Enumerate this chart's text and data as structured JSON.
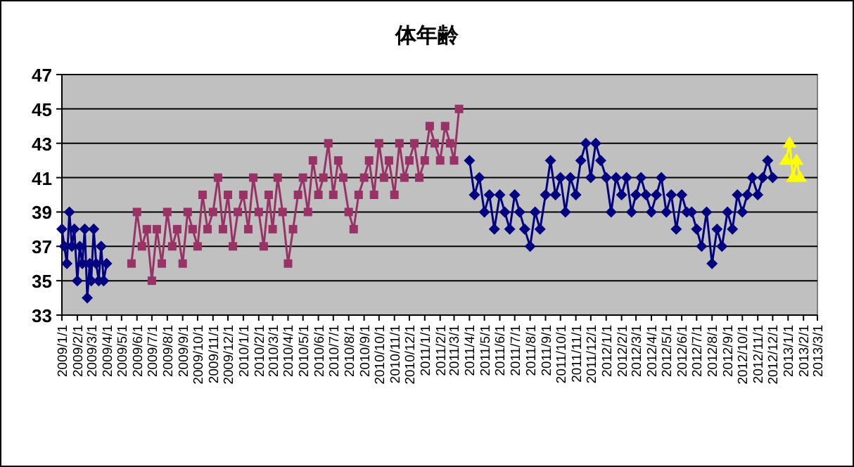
{
  "chart_data": {
    "type": "line",
    "title": "体年齢",
    "grid": "y",
    "line_style": "solid",
    "xlim": [
      "2009-01-01",
      "2013-03-01"
    ],
    "xticks": [
      {
        "value": "2009-01-01",
        "label": "2009/1/1"
      },
      {
        "value": "2009-02-01",
        "label": "2009/2/1"
      },
      {
        "value": "2009-03-01",
        "label": "2009/3/1"
      },
      {
        "value": "2009-04-01",
        "label": "2009/4/1"
      },
      {
        "value": "2009-05-01",
        "label": "2009/5/1"
      },
      {
        "value": "2009-06-01",
        "label": "2009/6/1"
      },
      {
        "value": "2009-07-01",
        "label": "2009/7/1"
      },
      {
        "value": "2009-08-01",
        "label": "2009/8/1"
      },
      {
        "value": "2009-09-01",
        "label": "2009/9/1"
      },
      {
        "value": "2009-10-01",
        "label": "2009/10/1"
      },
      {
        "value": "2009-11-01",
        "label": "2009/11/1"
      },
      {
        "value": "2009-12-01",
        "label": "2009/12/1"
      },
      {
        "value": "2010-01-01",
        "label": "2010/1/1"
      },
      {
        "value": "2010-02-01",
        "label": "2010/2/1"
      },
      {
        "value": "2010-03-01",
        "label": "2010/3/1"
      },
      {
        "value": "2010-04-01",
        "label": "2010/4/1"
      },
      {
        "value": "2010-05-01",
        "label": "2010/5/1"
      },
      {
        "value": "2010-06-01",
        "label": "2010/6/1"
      },
      {
        "value": "2010-07-01",
        "label": "2010/7/1"
      },
      {
        "value": "2010-08-01",
        "label": "2010/8/1"
      },
      {
        "value": "2010-09-01",
        "label": "2010/9/1"
      },
      {
        "value": "2010-10-01",
        "label": "2010/10/1"
      },
      {
        "value": "2010-11-01",
        "label": "2010/11/1"
      },
      {
        "value": "2010-12-01",
        "label": "2010/12/1"
      },
      {
        "value": "2011-01-01",
        "label": "2011/1/1"
      },
      {
        "value": "2011-02-01",
        "label": "2011/2/1"
      },
      {
        "value": "2011-03-01",
        "label": "2011/3/1"
      },
      {
        "value": "2011-04-01",
        "label": "2011/4/1"
      },
      {
        "value": "2011-05-01",
        "label": "2011/5/1"
      },
      {
        "value": "2011-06-01",
        "label": "2011/6/1"
      },
      {
        "value": "2011-07-01",
        "label": "2011/7/1"
      },
      {
        "value": "2011-08-01",
        "label": "2011/8/1"
      },
      {
        "value": "2011-09-01",
        "label": "2011/9/1"
      },
      {
        "value": "2011-10-01",
        "label": "2011/10/1"
      },
      {
        "value": "2011-11-01",
        "label": "2011/11/1"
      },
      {
        "value": "2011-12-01",
        "label": "2011/12/1"
      },
      {
        "value": "2012-01-01",
        "label": "2012/1/1"
      },
      {
        "value": "2012-02-01",
        "label": "2012/2/1"
      },
      {
        "value": "2012-03-01",
        "label": "2012/3/1"
      },
      {
        "value": "2012-04-01",
        "label": "2012/4/1"
      },
      {
        "value": "2012-05-01",
        "label": "2012/5/1"
      },
      {
        "value": "2012-06-01",
        "label": "2012/6/1"
      },
      {
        "value": "2012-07-01",
        "label": "2012/7/1"
      },
      {
        "value": "2012-08-01",
        "label": "2012/8/1"
      },
      {
        "value": "2012-09-01",
        "label": "2012/9/1"
      },
      {
        "value": "2012-10-01",
        "label": "2012/10/1"
      },
      {
        "value": "2012-11-01",
        "label": "2012/11/1"
      },
      {
        "value": "2012-12-01",
        "label": "2012/12/1"
      },
      {
        "value": "2013-01-01",
        "label": "2013/1/1"
      },
      {
        "value": "2013-02-01",
        "label": "2013/2/1"
      },
      {
        "value": "2013-03-01",
        "label": "2013/3/1"
      }
    ],
    "ylim": [
      33,
      47
    ],
    "yticks": [
      33,
      35,
      37,
      39,
      41,
      43,
      45,
      47
    ],
    "series": [
      {
        "color": "#000080",
        "marker": "diamond",
        "x": [
          "2009-01-01",
          "2009-01-06",
          "2009-01-11",
          "2009-01-16",
          "2009-01-21",
          "2009-01-26",
          "2009-02-01",
          "2009-02-06",
          "2009-02-11",
          "2009-02-16",
          "2009-02-21",
          "2009-02-26",
          "2009-03-01",
          "2009-03-06",
          "2009-03-11",
          "2009-03-16",
          "2009-03-21",
          "2009-03-26",
          "2009-04-01"
        ],
        "values": [
          38,
          37,
          36,
          39,
          37,
          38,
          35,
          37,
          36,
          38,
          34,
          36,
          35,
          38,
          36,
          35,
          37,
          35,
          36
        ]
      },
      {
        "color": "#993366",
        "marker": "square",
        "x": [
          "2009-05-21",
          "2009-06-01",
          "2009-06-11",
          "2009-06-21",
          "2009-07-01",
          "2009-07-11",
          "2009-07-21",
          "2009-08-01",
          "2009-08-11",
          "2009-08-21",
          "2009-09-01",
          "2009-09-11",
          "2009-09-21",
          "2009-10-01",
          "2009-10-11",
          "2009-10-21",
          "2009-11-01",
          "2009-11-11",
          "2009-11-21",
          "2009-12-01",
          "2009-12-11",
          "2009-12-21",
          "2010-01-01",
          "2010-01-11",
          "2010-01-21",
          "2010-02-01",
          "2010-02-11",
          "2010-02-21",
          "2010-03-01",
          "2010-03-11",
          "2010-03-21",
          "2010-04-01",
          "2010-04-11",
          "2010-04-21",
          "2010-05-01",
          "2010-05-11",
          "2010-05-21",
          "2010-06-01",
          "2010-06-11",
          "2010-06-21",
          "2010-07-01",
          "2010-07-11",
          "2010-07-21",
          "2010-08-01",
          "2010-08-11",
          "2010-08-21",
          "2010-09-01",
          "2010-09-11",
          "2010-09-21",
          "2010-10-01",
          "2010-10-11",
          "2010-10-21",
          "2010-11-01",
          "2010-11-11",
          "2010-11-21",
          "2010-12-01",
          "2010-12-11",
          "2010-12-21",
          "2011-01-01",
          "2011-01-11",
          "2011-01-21",
          "2011-02-01",
          "2011-02-11",
          "2011-02-21",
          "2011-03-01",
          "2011-03-11"
        ],
        "values": [
          36,
          39,
          37,
          38,
          35,
          38,
          36,
          39,
          37,
          38,
          36,
          39,
          38,
          37,
          40,
          38,
          39,
          41,
          38,
          40,
          37,
          39,
          40,
          38,
          41,
          39,
          37,
          40,
          38,
          41,
          39,
          36,
          38,
          40,
          41,
          39,
          42,
          40,
          41,
          43,
          40,
          42,
          41,
          39,
          38,
          40,
          41,
          42,
          40,
          43,
          41,
          42,
          40,
          43,
          41,
          42,
          43,
          41,
          42,
          44,
          43,
          42,
          44,
          43,
          42,
          45
        ]
      },
      {
        "color": "#000080",
        "marker": "diamond",
        "x": [
          "2011-04-01",
          "2011-04-11",
          "2011-04-21",
          "2011-05-01",
          "2011-05-11",
          "2011-05-21",
          "2011-06-01",
          "2011-06-11",
          "2011-06-21",
          "2011-07-01",
          "2011-07-11",
          "2011-07-21",
          "2011-08-01",
          "2011-08-11",
          "2011-08-21",
          "2011-09-01",
          "2011-09-11",
          "2011-09-21",
          "2011-10-01",
          "2011-10-11",
          "2011-10-21",
          "2011-11-01",
          "2011-11-11",
          "2011-11-21",
          "2011-12-01",
          "2011-12-11",
          "2011-12-21",
          "2012-01-01",
          "2012-01-11",
          "2012-01-21",
          "2012-02-01",
          "2012-02-11",
          "2012-02-21",
          "2012-03-01",
          "2012-03-11",
          "2012-03-21",
          "2012-04-01",
          "2012-04-11",
          "2012-04-21",
          "2012-05-01",
          "2012-05-11",
          "2012-05-21",
          "2012-06-01",
          "2012-06-11",
          "2012-06-21",
          "2012-07-01",
          "2012-07-11",
          "2012-07-21",
          "2012-08-01",
          "2012-08-11",
          "2012-08-21",
          "2012-09-01",
          "2012-09-11",
          "2012-09-21",
          "2012-10-01",
          "2012-10-11",
          "2012-10-21",
          "2012-11-01",
          "2012-11-11",
          "2012-11-21",
          "2012-12-01"
        ],
        "values": [
          42,
          40,
          41,
          39,
          40,
          38,
          40,
          39,
          38,
          40,
          39,
          38,
          37,
          39,
          38,
          40,
          42,
          40,
          41,
          39,
          41,
          40,
          42,
          43,
          41,
          43,
          42,
          41,
          39,
          41,
          40,
          41,
          39,
          40,
          41,
          40,
          39,
          40,
          41,
          39,
          40,
          38,
          40,
          39,
          39,
          38,
          37,
          39,
          36,
          38,
          37,
          39,
          38,
          40,
          39,
          40,
          41,
          40,
          41,
          42,
          41
        ]
      },
      {
        "color": "#ffff00",
        "marker": "triangle",
        "x": [
          "2012-12-28",
          "2013-01-04",
          "2013-01-11",
          "2013-01-18",
          "2013-01-25"
        ],
        "values": [
          42,
          43,
          41,
          42,
          41
        ]
      }
    ]
  }
}
